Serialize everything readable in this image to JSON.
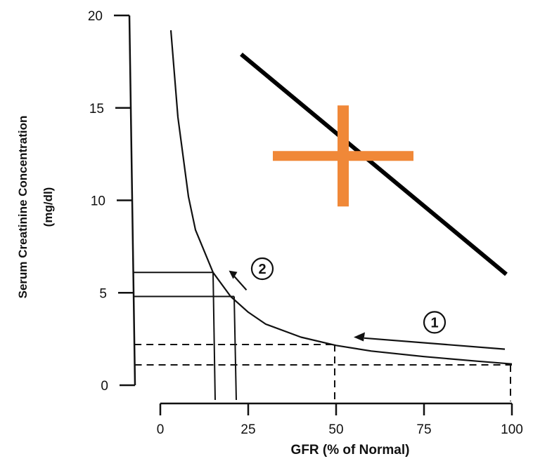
{
  "chart_data": {
    "type": "line",
    "xlabel": "GFR (% of Normal)",
    "ylabel_line1": "Serum Creatinine Concentration",
    "ylabel_line2": "(mg/dl)",
    "xlim": [
      0,
      100
    ],
    "ylim": [
      0,
      20
    ],
    "x_ticks": [
      "0",
      "25",
      "50",
      "75",
      "100"
    ],
    "y_ticks": [
      "0",
      "5",
      "10",
      "15",
      "20"
    ],
    "series": [
      {
        "x": [
          3,
          5,
          8,
          10,
          15,
          20,
          25,
          30,
          40,
          50,
          60,
          75,
          90,
          100
        ],
        "y": [
          19.2,
          14.5,
          10.2,
          8.4,
          6.1,
          4.8,
          3.95,
          3.3,
          2.6,
          2.15,
          1.85,
          1.55,
          1.3,
          1.15
        ]
      }
    ],
    "reference_lines": {
      "solid_horizontal_y": [
        6.1,
        4.8
      ],
      "solid_vertical_x": [
        15,
        21
      ],
      "dashed_horizontal_y": [
        2.2,
        1.1
      ],
      "dashed_vertical_x": [
        50,
        100
      ]
    },
    "annotations": [
      {
        "label": "1",
        "x": 78,
        "y": 3.4
      },
      {
        "label": "2",
        "x": 29,
        "y": 6.3
      }
    ],
    "overlay_black_line": [
      [
        23,
        17.9
      ],
      [
        100,
        6.0
      ]
    ],
    "overlay_cross": {
      "x": 52,
      "y": 12.4,
      "color": "#f08838"
    }
  }
}
